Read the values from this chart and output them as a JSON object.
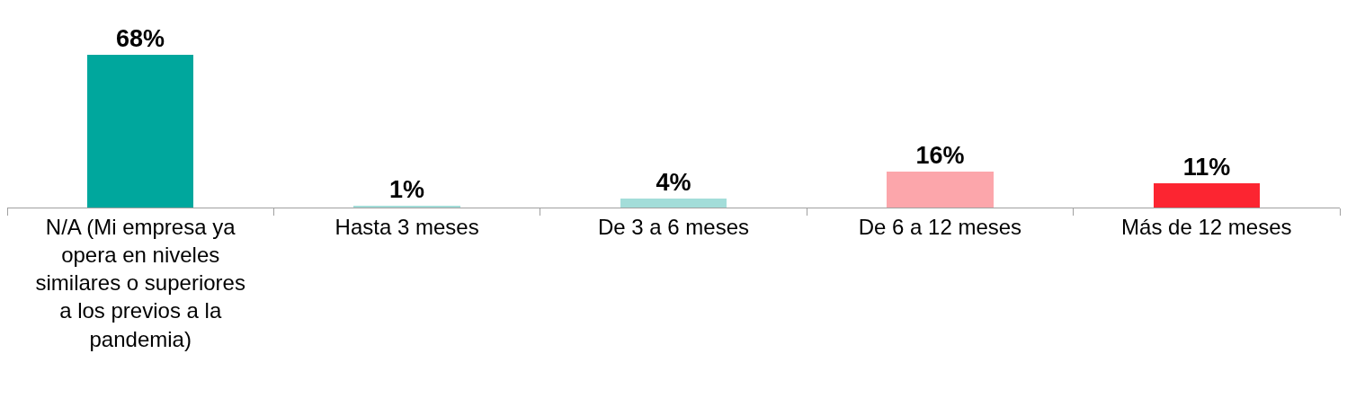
{
  "chart_data": {
    "type": "bar",
    "categories": [
      "N/A (Mi empresa ya opera en niveles similares o superiores a los previos a la pandemia)",
      "Hasta 3 meses",
      "De 3 a 6 meses",
      "De 6 a 12 meses",
      "Más de 12 meses"
    ],
    "values": [
      68,
      1,
      4,
      16,
      11
    ],
    "colors": [
      "#00a79d",
      "#a3ddd9",
      "#a3ddd9",
      "#fca6ab",
      "#fc2531"
    ],
    "value_labels": [
      "68%",
      "1%",
      "4%",
      "16%",
      "11%"
    ],
    "legend": false
  }
}
